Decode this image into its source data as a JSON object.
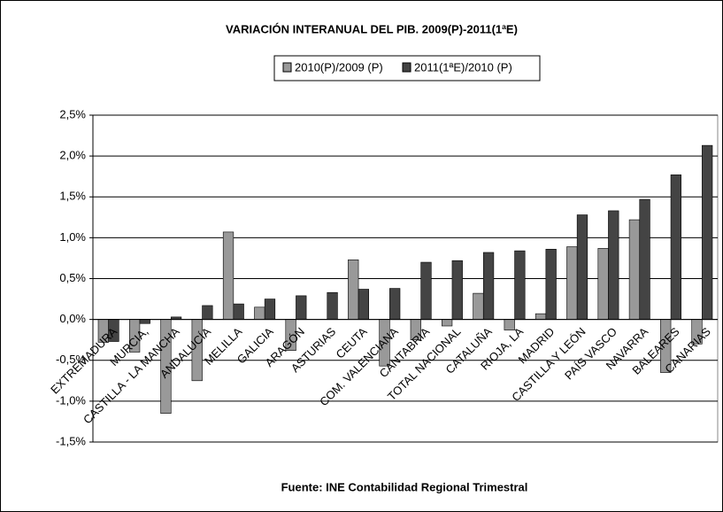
{
  "chart_data": {
    "type": "bar",
    "title": "VARIACIÓN INTERANUAL DEL PIB. 2009(P)-2011(1ªE)",
    "source": "Fuente: INE Contabilidad Regional Trimestral",
    "categories": [
      "EXTREMADURA",
      "MURCIA,",
      "CASTILLA - LA MANCHA",
      "ANDALUCÍA",
      "MELILLA",
      "GALICIA",
      "ARAGÓN",
      "ASTURIAS",
      "CEUTA",
      "COM. VALENCIANA",
      "CANTABRIA",
      "TOTAL NACIONAL",
      "CATALUÑA",
      "RIOJA, LA",
      "MADRID",
      "CASTILLA Y LEÓN",
      "PAÍS VASCO",
      "NAVARRA",
      "BALEARES",
      "CANARIAS"
    ],
    "series": [
      {
        "name": "2010(P)/2009 (P)",
        "color": "#999999",
        "values": [
          -0.28,
          -0.4,
          -1.15,
          -0.75,
          1.07,
          0.15,
          -0.38,
          0,
          0.73,
          -0.57,
          -0.25,
          -0.08,
          0.32,
          -0.13,
          0.07,
          0.89,
          0.87,
          1.22,
          -0.65,
          -0.3
        ]
      },
      {
        "name": "2011(1ªE)/2010 (P)",
        "color": "#444444",
        "values": [
          -0.27,
          -0.05,
          0.03,
          0.17,
          0.19,
          0.25,
          0.29,
          0.33,
          0.37,
          0.38,
          0.7,
          0.72,
          0.82,
          0.84,
          0.86,
          1.28,
          1.33,
          1.47,
          1.77,
          2.13
        ]
      }
    ],
    "ylim": [
      -1.5,
      2.5
    ],
    "yticks": [
      {
        "value": -1.5,
        "label": "-1,5%"
      },
      {
        "value": -1,
        "label": "-1,0%"
      },
      {
        "value": -0.5,
        "label": "-0,5%"
      },
      {
        "value": 0,
        "label": "0,0%"
      },
      {
        "value": 0.5,
        "label": "0,5%"
      },
      {
        "value": 1,
        "label": "1,0%"
      },
      {
        "value": 1.5,
        "label": "1,5%"
      },
      {
        "value": 2,
        "label": "2,0%"
      },
      {
        "value": 2.5,
        "label": "2,5%"
      }
    ],
    "grid": true
  }
}
